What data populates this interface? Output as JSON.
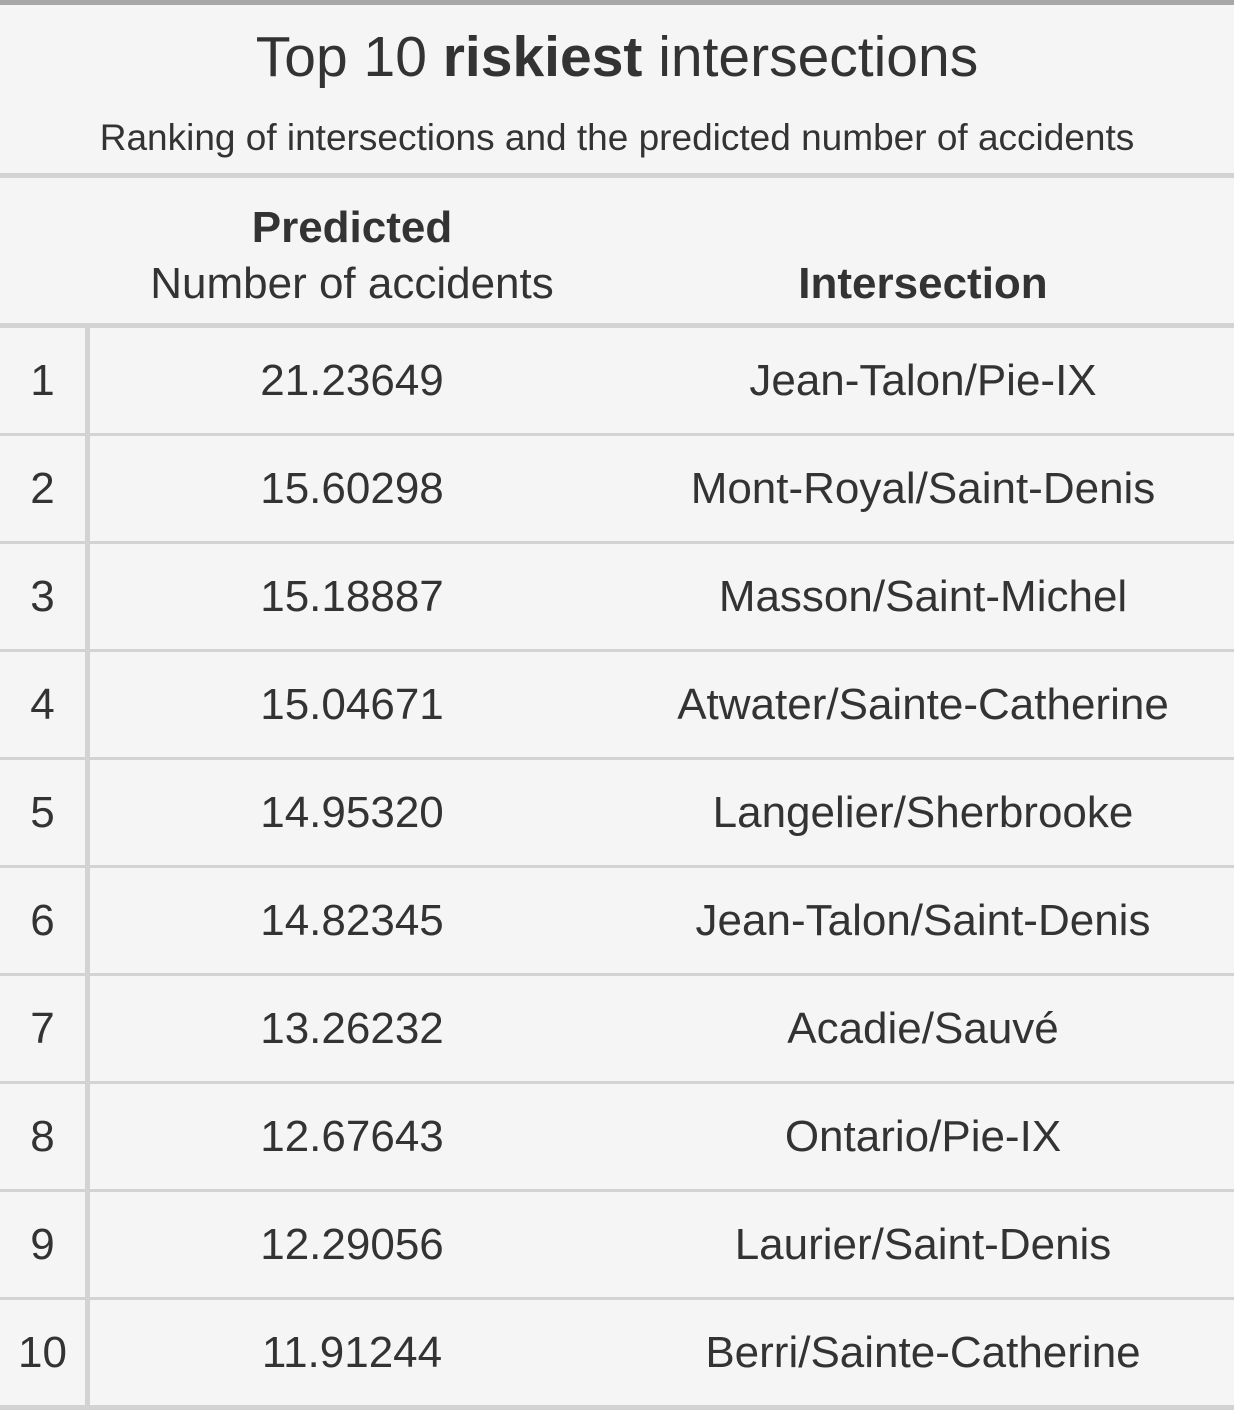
{
  "table": {
    "title_prefix": "Top 10 ",
    "title_bold": "riskiest",
    "title_suffix": " intersections",
    "subtitle": "Ranking of intersections and the predicted number of accidents",
    "spanner_label": "Predicted",
    "columns": {
      "predicted": "Number of accidents",
      "intersection": "Intersection"
    },
    "rows": [
      {
        "rank": "1",
        "predicted": "21.23649",
        "intersection": "Jean-Talon/Pie-IX"
      },
      {
        "rank": "2",
        "predicted": "15.60298",
        "intersection": "Mont-Royal/Saint-Denis"
      },
      {
        "rank": "3",
        "predicted": "15.18887",
        "intersection": "Masson/Saint-Michel"
      },
      {
        "rank": "4",
        "predicted": "15.04671",
        "intersection": "Atwater/Sainte-Catherine"
      },
      {
        "rank": "5",
        "predicted": "14.95320",
        "intersection": "Langelier/Sherbrooke"
      },
      {
        "rank": "6",
        "predicted": "14.82345",
        "intersection": "Jean-Talon/Saint-Denis"
      },
      {
        "rank": "7",
        "predicted": "13.26232",
        "intersection": "Acadie/Sauvé"
      },
      {
        "rank": "8",
        "predicted": "12.67643",
        "intersection": "Ontario/Pie-IX"
      },
      {
        "rank": "9",
        "predicted": "12.29056",
        "intersection": "Laurier/Saint-Denis"
      },
      {
        "rank": "10",
        "predicted": "11.91244",
        "intersection": "Berri/Sainte-Catherine"
      }
    ]
  }
}
